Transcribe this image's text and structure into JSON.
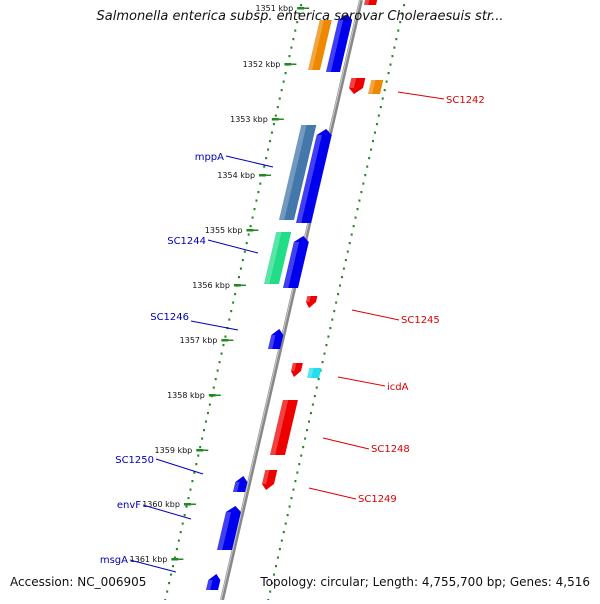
{
  "title": "Salmonella enterica subsp. enterica serovar Choleraesuis str...",
  "footer": {
    "accession": "Accession: NC_006905",
    "topology": "Topology: circular; Length: 4,755,700 bp; Genes: 4,516"
  },
  "colors": {
    "forward_strand": "#0000ee",
    "reverse_strand": "#ee0000",
    "orange": "#ee8800",
    "steelblue": "#4477aa",
    "seagreen": "#22dd88",
    "cyan": "#22ddee",
    "label_forward": "#0000bb",
    "label_reverse": "#dd0000",
    "tick": "#228822",
    "backbone": "#888888"
  },
  "ticks": [
    {
      "label": "1351 kbp"
    },
    {
      "label": "1352 kbp"
    },
    {
      "label": "1353 kbp"
    },
    {
      "label": "1354 kbp"
    },
    {
      "label": "1355 kbp"
    },
    {
      "label": "1356 kbp"
    },
    {
      "label": "1357 kbp"
    },
    {
      "label": "1358 kbp"
    },
    {
      "label": "1359 kbp"
    },
    {
      "label": "1360 kbp"
    },
    {
      "label": "1361 kbp"
    }
  ],
  "gene_labels": [
    {
      "name": "mppA",
      "strand": "forward"
    },
    {
      "name": "SC1244",
      "strand": "forward"
    },
    {
      "name": "SC1246",
      "strand": "forward"
    },
    {
      "name": "SC1250",
      "strand": "forward"
    },
    {
      "name": "envF",
      "strand": "forward"
    },
    {
      "name": "msgA",
      "strand": "forward"
    },
    {
      "name": "SC1242",
      "strand": "reverse"
    },
    {
      "name": "SC1245",
      "strand": "reverse"
    },
    {
      "name": "icdA",
      "strand": "reverse"
    },
    {
      "name": "SC1248",
      "strand": "reverse"
    },
    {
      "name": "SC1249",
      "strand": "reverse"
    }
  ]
}
